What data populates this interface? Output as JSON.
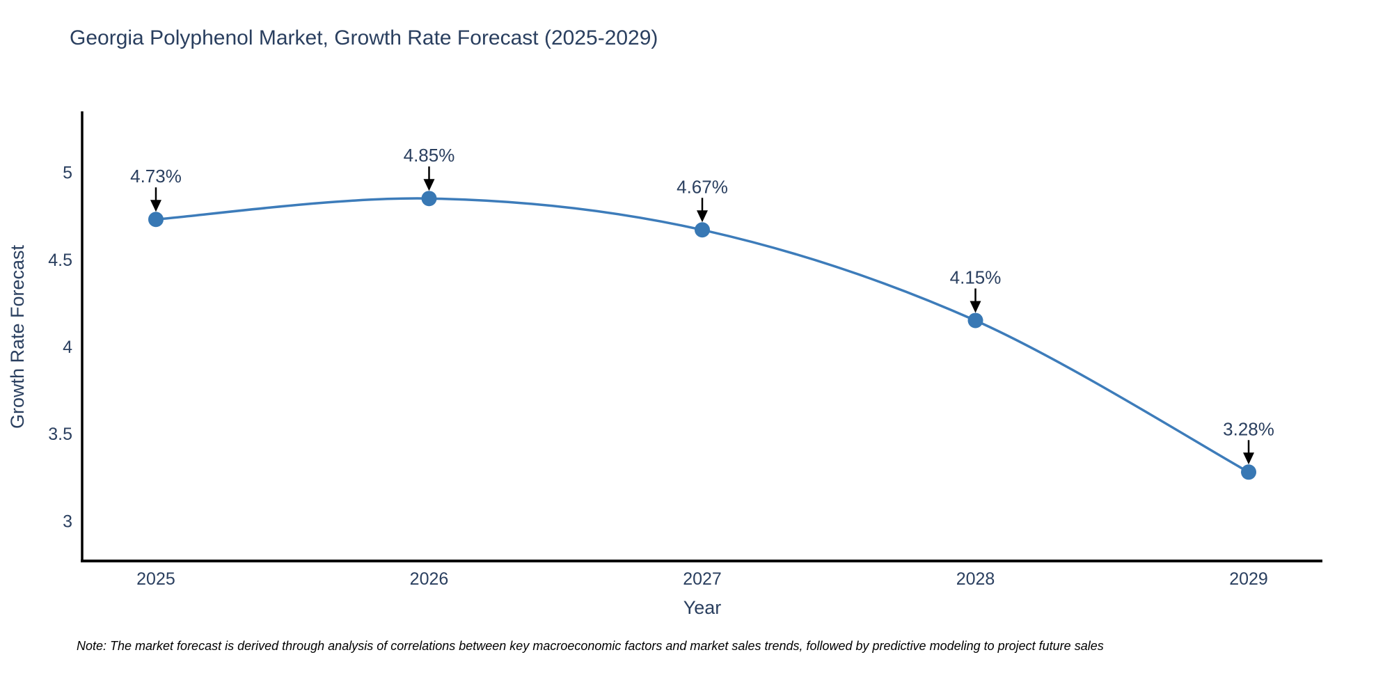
{
  "chart_data": {
    "type": "line",
    "title": "Georgia Polyphenol Market, Growth Rate Forecast (2025-2029)",
    "xlabel": "Year",
    "ylabel": "Growth Rate Forecast",
    "x": [
      2025,
      2026,
      2027,
      2028,
      2029
    ],
    "y": [
      4.73,
      4.85,
      4.67,
      4.15,
      3.28
    ],
    "point_labels": [
      "4.73%",
      "4.85%",
      "4.67%",
      "4.15%",
      "3.28%"
    ],
    "xticks": [
      2025,
      2026,
      2027,
      2028,
      2029
    ],
    "yticks": [
      3,
      3.5,
      4,
      4.5,
      5
    ],
    "xlim": [
      2024.73,
      2029.27
    ],
    "ylim": [
      2.77,
      5.35
    ],
    "grid": false,
    "legend": "none",
    "line_shape": "spline",
    "line_color": "#3d7cba",
    "marker_color": "#3878b4",
    "axis_color": "#000000",
    "text_color": "#2a3f5f",
    "annotation_arrow_color": "#000000"
  },
  "footnote": "Note: The market forecast is derived through analysis of correlations between key macroeconomic factors and market sales trends, followed by predictive modeling to project future sales"
}
